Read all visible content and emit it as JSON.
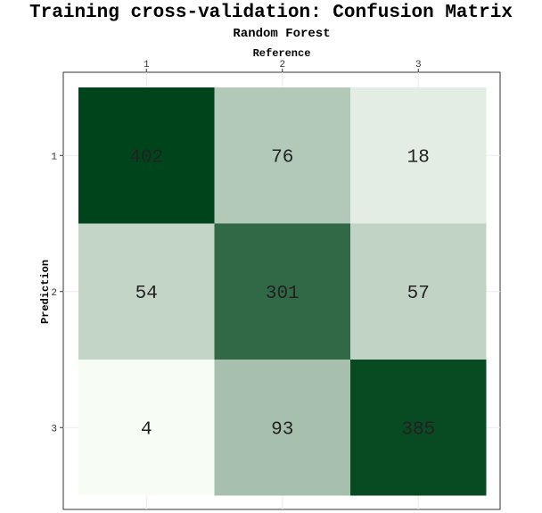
{
  "chart_data": {
    "type": "heatmap",
    "title": "Training cross-validation: Confusion Matrix",
    "subtitle": "Random Forest",
    "xlabel": "Reference",
    "ylabel": "Prediction",
    "x_categories": [
      "1",
      "2",
      "3"
    ],
    "y_categories": [
      "1",
      "2",
      "3"
    ],
    "values": [
      [
        402,
        76,
        18
      ],
      [
        54,
        301,
        57
      ],
      [
        4,
        93,
        385
      ]
    ],
    "x_axis_position": "top",
    "grid": true,
    "legend": "none",
    "color_scale": {
      "low": "#f7fcf5",
      "high": "#00441b",
      "palette": "Greens"
    }
  }
}
